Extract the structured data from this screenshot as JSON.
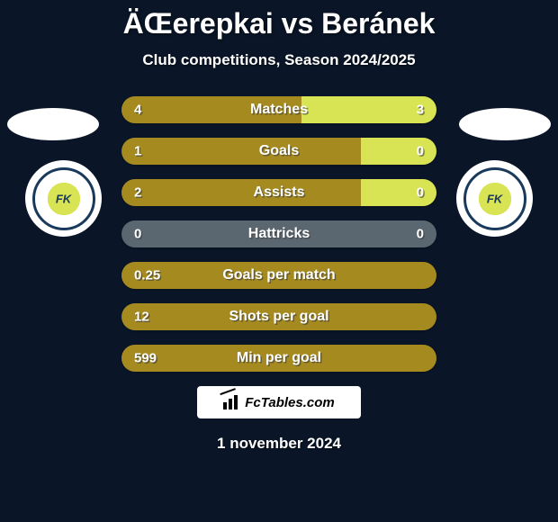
{
  "title": "ÄŒerepkai vs Beránek",
  "subtitle": "Club competitions, Season 2024/2025",
  "colors": {
    "left": "#a58a1f",
    "right": "#d9e455",
    "neutral": "#5b6770",
    "background": "#0a1628"
  },
  "badge": {
    "initials": "FK"
  },
  "bars": [
    {
      "label": "Matches",
      "left_val": "4",
      "right_val": "3",
      "left_pct": 57,
      "left_color": "#a58a1f",
      "right_color": "#d9e455"
    },
    {
      "label": "Goals",
      "left_val": "1",
      "right_val": "0",
      "left_pct": 76,
      "left_color": "#a58a1f",
      "right_color": "#d9e455"
    },
    {
      "label": "Assists",
      "left_val": "2",
      "right_val": "0",
      "left_pct": 76,
      "left_color": "#a58a1f",
      "right_color": "#d9e455"
    },
    {
      "label": "Hattricks",
      "left_val": "0",
      "right_val": "0",
      "left_pct": 50,
      "left_color": "#5b6770",
      "right_color": "#5b6770"
    },
    {
      "label": "Goals per match",
      "left_val": "0.25",
      "right_val": "",
      "left_pct": 100,
      "left_color": "#a58a1f",
      "right_color": "#a58a1f"
    },
    {
      "label": "Shots per goal",
      "left_val": "12",
      "right_val": "",
      "left_pct": 100,
      "left_color": "#a58a1f",
      "right_color": "#a58a1f"
    },
    {
      "label": "Min per goal",
      "left_val": "599",
      "right_val": "",
      "left_pct": 100,
      "left_color": "#a58a1f",
      "right_color": "#a58a1f"
    }
  ],
  "brand": "FcTables.com",
  "date": "1 november 2024"
}
